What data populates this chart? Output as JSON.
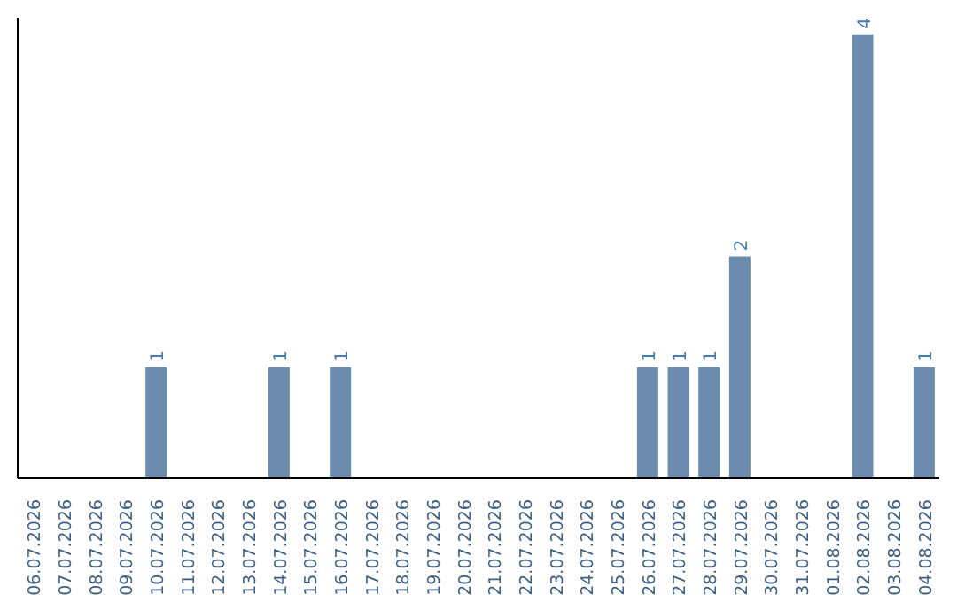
{
  "chart_data": {
    "type": "bar",
    "categories": [
      "06.07.2026",
      "07.07.2026",
      "08.07.2026",
      "09.07.2026",
      "10.07.2026",
      "11.07.2026",
      "12.07.2026",
      "13.07.2026",
      "14.07.2026",
      "15.07.2026",
      "16.07.2026",
      "17.07.2026",
      "18.07.2026",
      "19.07.2026",
      "20.07.2026",
      "21.07.2026",
      "22.07.2026",
      "23.07.2026",
      "24.07.2026",
      "25.07.2026",
      "26.07.2026",
      "27.07.2026",
      "28.07.2026",
      "29.07.2026",
      "30.07.2026",
      "31.07.2026",
      "01.08.2026",
      "02.08.2026",
      "03.08.2026",
      "04.08.2026"
    ],
    "values": [
      0,
      0,
      0,
      0,
      1,
      0,
      0,
      0,
      1,
      0,
      1,
      0,
      0,
      0,
      0,
      0,
      0,
      0,
      0,
      0,
      1,
      1,
      1,
      2,
      0,
      0,
      0,
      4,
      0,
      1
    ],
    "value_labels": [
      null,
      null,
      null,
      null,
      "1",
      null,
      null,
      null,
      "1",
      null,
      "1",
      null,
      null,
      null,
      null,
      null,
      null,
      null,
      null,
      null,
      "1",
      "1",
      "1",
      "2",
      null,
      null,
      null,
      "4",
      null,
      "1"
    ],
    "color": "#6b8cad",
    "ylim": [
      0,
      4.15
    ],
    "grid": false
  }
}
